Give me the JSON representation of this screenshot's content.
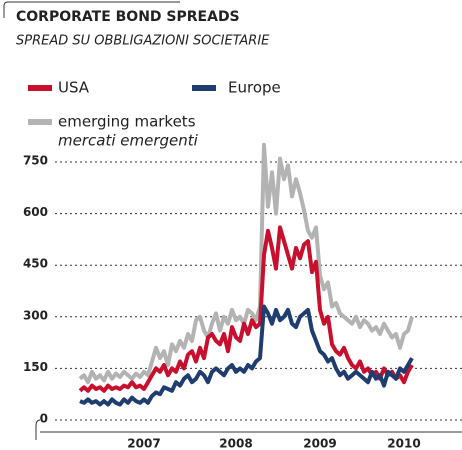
{
  "chart_data": {
    "type": "line",
    "title": "CORPORATE BOND SPREADS",
    "subtitle": "SPREAD SU OBBLIGAZIONI SOCIETARIE",
    "categories": [
      null,
      null,
      null,
      null,
      null,
      null,
      null,
      null,
      null,
      null,
      null,
      null,
      null,
      null,
      null,
      null,
      "2007",
      null,
      null,
      null,
      null,
      null,
      null,
      null,
      null,
      null,
      null,
      null,
      null,
      null,
      null,
      null,
      null,
      null,
      null,
      null,
      null,
      null,
      null,
      "2008",
      null,
      null,
      null,
      null,
      null,
      null,
      null,
      null,
      null,
      null,
      null,
      null,
      null,
      null,
      null,
      null,
      null,
      null,
      null,
      null,
      "2009",
      null,
      null,
      null,
      null,
      null,
      null,
      null,
      null,
      null,
      null,
      null,
      null,
      null,
      null,
      null,
      null,
      null,
      null,
      null,
      null,
      "2010",
      null,
      null
    ],
    "series": [
      {
        "name": "USA",
        "color": "#c8102e",
        "values": [
          85,
          95,
          85,
          100,
          90,
          95,
          85,
          100,
          90,
          95,
          90,
          100,
          95,
          110,
          95,
          100,
          90,
          110,
          130,
          150,
          140,
          160,
          130,
          150,
          140,
          170,
          150,
          190,
          200,
          170,
          210,
          180,
          240,
          250,
          230,
          220,
          250,
          200,
          270,
          240,
          230,
          280,
          250,
          290,
          270,
          280,
          480,
          550,
          500,
          440,
          560,
          520,
          480,
          440,
          500,
          470,
          510,
          520,
          430,
          460,
          320,
          280,
          300,
          220,
          200,
          190,
          210,
          180,
          160,
          150,
          170,
          140,
          150,
          130,
          140,
          120,
          150,
          130,
          140,
          120,
          130,
          110,
          140,
          160
        ]
      },
      {
        "name": "Europe",
        "color": "#1f3d6e",
        "values": [
          55,
          50,
          60,
          50,
          55,
          45,
          55,
          45,
          60,
          50,
          45,
          60,
          50,
          65,
          55,
          50,
          60,
          50,
          70,
          80,
          75,
          95,
          90,
          85,
          110,
          100,
          120,
          130,
          110,
          120,
          140,
          130,
          110,
          140,
          150,
          140,
          130,
          150,
          160,
          140,
          150,
          140,
          160,
          150,
          170,
          180,
          330,
          310,
          280,
          320,
          290,
          300,
          320,
          280,
          270,
          300,
          310,
          320,
          260,
          230,
          200,
          190,
          170,
          180,
          150,
          130,
          140,
          120,
          130,
          140,
          130,
          120,
          110,
          140,
          120,
          130,
          100,
          140,
          130,
          120,
          150,
          140,
          160,
          180
        ]
      },
      {
        "name": "emerging markets",
        "subname": "mercati emergenti",
        "color": "#b3b3b3",
        "values": [
          120,
          130,
          110,
          140,
          120,
          130,
          115,
          140,
          120,
          135,
          125,
          140,
          130,
          120,
          135,
          125,
          140,
          130,
          170,
          210,
          180,
          200,
          160,
          220,
          200,
          230,
          210,
          250,
          230,
          290,
          300,
          260,
          240,
          280,
          310,
          260,
          300,
          280,
          320,
          290,
          300,
          280,
          320,
          310,
          290,
          330,
          800,
          620,
          720,
          600,
          760,
          700,
          740,
          650,
          700,
          660,
          610,
          550,
          530,
          560,
          420,
          380,
          400,
          330,
          340,
          310,
          300,
          290,
          280,
          300,
          270,
          290,
          280,
          260,
          270,
          250,
          280,
          260,
          240,
          250,
          210,
          250,
          260,
          300
        ]
      }
    ],
    "ylim": [
      0,
      750
    ],
    "yticks": [
      0,
      150,
      300,
      450,
      600,
      750
    ],
    "grid": true
  }
}
